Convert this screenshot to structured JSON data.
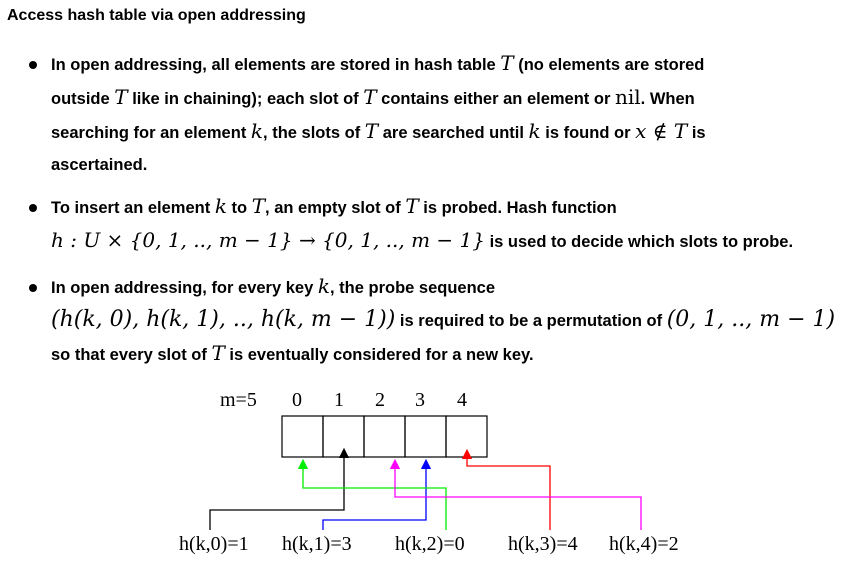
{
  "title": "Access hash table via open addressing",
  "bullets": {
    "b1": {
      "t1": "In open addressing, all elements are stored in hash table ",
      "m1": "T",
      "t2": " (no elements are stored",
      "t3": "outside ",
      "m2": "T",
      "t4": " like in chaining); each slot of ",
      "m3": "T",
      "t5": " contains either an element or ",
      "m4": "nil",
      "t6": ". When",
      "t7": "searching for an element ",
      "m5": "k",
      "t8": ", the slots of ",
      "m6": "T",
      "t9": " are searched until ",
      "m7": "k",
      "t10": " is found or ",
      "m8": "x ∉ T",
      "t11": " is",
      "t12": "ascertained."
    },
    "b2": {
      "t1": "To insert an element ",
      "m1": "k",
      "t2": " to ",
      "m2": "T",
      "t3": ", an empty slot of ",
      "m3": "T",
      "t4": " is probed. Hash function",
      "m4": "h : U × {0, 1, .., m − 1} → {0, 1, .., m − 1}",
      "t5": " is used to decide which slots to probe."
    },
    "b3": {
      "t1": "In open addressing, for every key ",
      "m1": "k",
      "t2": ", the probe sequence",
      "m2": "(h(k, 0), h(k, 1), .., h(k, m − 1))",
      "t3": " is required to be a permutation of ",
      "m3": "(0, 1, .., m − 1)",
      "t4": "so that every slot of ",
      "m4": "T",
      "t5": " is eventually considered for a new key."
    }
  },
  "diagram": {
    "m_label": "m=5",
    "slot_indices": [
      "0",
      "1",
      "2",
      "3",
      "4"
    ],
    "probes": [
      {
        "label": "h(k,0)=1",
        "slot": 1,
        "color": "#000000"
      },
      {
        "label": "h(k,1)=3",
        "slot": 3,
        "color": "#0000ff"
      },
      {
        "label": "h(k,2)=0",
        "slot": 0,
        "color": "#00ee00"
      },
      {
        "label": "h(k,3)=4",
        "slot": 4,
        "color": "#ff0000"
      },
      {
        "label": "h(k,4)=2",
        "slot": 2,
        "color": "#ff00ff"
      }
    ]
  }
}
